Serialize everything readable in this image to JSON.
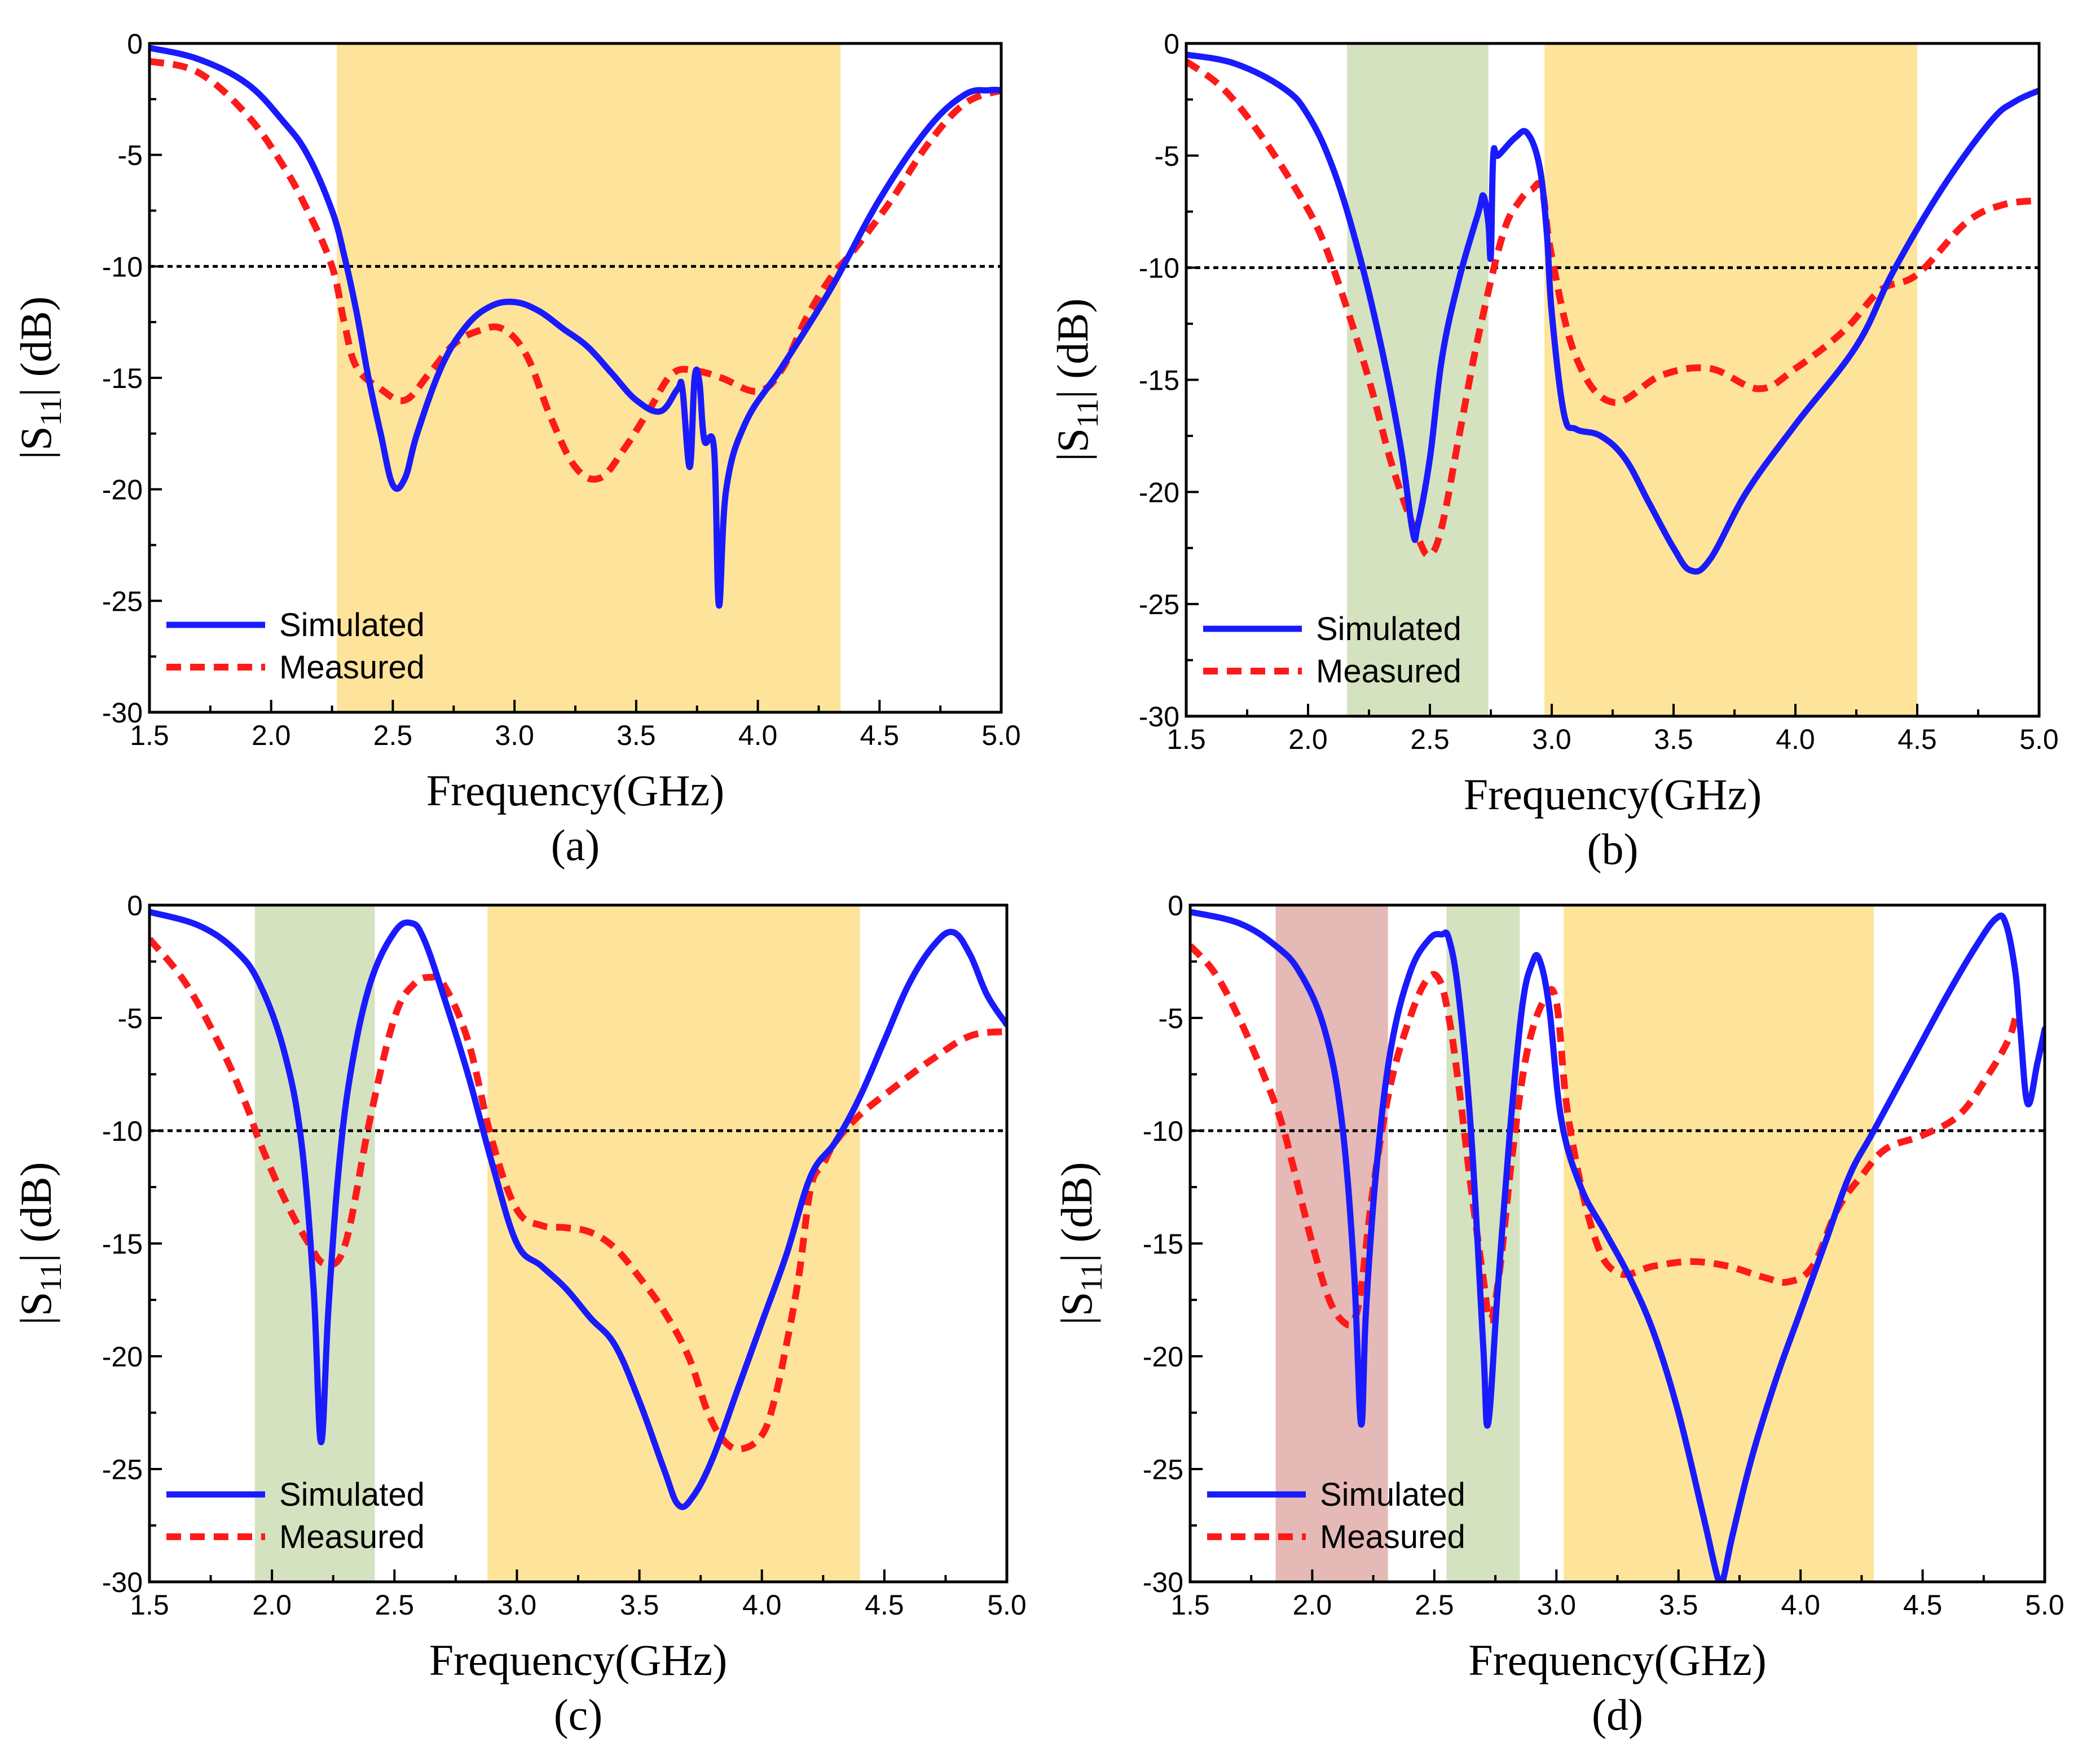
{
  "figure": {
    "x_axis_label": "Frequency(GHz)",
    "y_axis_label_prefix": "|S",
    "y_axis_label_sub": "11",
    "y_axis_label_suffix": "| (dB)",
    "colors": {
      "simulated": "#1a1aff",
      "measured": "#ff1a1a",
      "threshold": "#000000",
      "band_yellow": "#fde49a",
      "band_green": "#d5e2c0",
      "band_red": "#e4b9b6"
    }
  },
  "chart_data": [
    {
      "type": "line",
      "panel_label": "(a)",
      "xlabel": "Frequency(GHz)",
      "ylabel": "|S11| (dB)",
      "xlim": [
        1.5,
        5.0
      ],
      "ylim": [
        -30,
        0
      ],
      "xticks": [
        "1.5",
        "2.0",
        "2.5",
        "3.0",
        "3.5",
        "4.0",
        "4.5",
        "5.0"
      ],
      "yticks": [
        "0",
        "-5",
        "-10",
        "-15",
        "-20",
        "-25",
        "-30"
      ],
      "threshold": -10,
      "legend": [
        "Simulated",
        "Measured"
      ],
      "bands": [
        {
          "start": 2.27,
          "end": 4.34,
          "color": "yellow"
        }
      ],
      "series": [
        {
          "name": "Simulated",
          "x": [
            1.5,
            1.7,
            1.9,
            2.05,
            2.15,
            2.25,
            2.3,
            2.35,
            2.4,
            2.45,
            2.5,
            2.55,
            2.6,
            2.7,
            2.8,
            2.9,
            3.0,
            3.1,
            3.2,
            3.3,
            3.4,
            3.5,
            3.6,
            3.67,
            3.69,
            3.72,
            3.74,
            3.76,
            3.78,
            3.82,
            3.84,
            3.87,
            3.95,
            4.1,
            4.3,
            4.5,
            4.7,
            4.85,
            4.95,
            5.0
          ],
          "y": [
            -0.2,
            -0.7,
            -1.8,
            -3.5,
            -5.0,
            -7.5,
            -9.5,
            -12,
            -15,
            -17.5,
            -19.8,
            -19.5,
            -17.5,
            -14.5,
            -12.7,
            -11.8,
            -11.6,
            -12,
            -12.8,
            -13.6,
            -14.8,
            -16,
            -16.5,
            -15.5,
            -15.5,
            -19,
            -15,
            -15.2,
            -17.8,
            -18.2,
            -25.2,
            -20,
            -17,
            -14.5,
            -11,
            -7,
            -3.8,
            -2.3,
            -2.1,
            -2.1
          ]
        },
        {
          "name": "Measured",
          "x": [
            1.5,
            1.7,
            1.9,
            2.05,
            2.15,
            2.25,
            2.3,
            2.35,
            2.45,
            2.55,
            2.65,
            2.75,
            2.85,
            2.95,
            3.05,
            3.15,
            3.25,
            3.35,
            3.45,
            3.55,
            3.65,
            3.75,
            3.85,
            4.0,
            4.1,
            4.2,
            4.3,
            4.4,
            4.55,
            4.7,
            4.85,
            5.0
          ],
          "y": [
            -0.8,
            -1.3,
            -3.2,
            -5.5,
            -7.5,
            -10.0,
            -12.5,
            -14.5,
            -15.5,
            -16.0,
            -14.8,
            -13.5,
            -12.9,
            -12.8,
            -14.0,
            -16.8,
            -19.0,
            -19.5,
            -18.2,
            -16.5,
            -14.8,
            -14.7,
            -15.0,
            -15.6,
            -14.6,
            -12.3,
            -10.5,
            -9.2,
            -7.0,
            -4.5,
            -2.7,
            -2.1
          ]
        }
      ]
    },
    {
      "type": "line",
      "panel_label": "(b)",
      "xlabel": "Frequency(GHz)",
      "ylabel": "|S11| (dB)",
      "xlim": [
        1.5,
        5.0
      ],
      "ylim": [
        -30,
        0
      ],
      "xticks": [
        "1.5",
        "2.0",
        "2.5",
        "3.0",
        "3.5",
        "4.0",
        "4.5",
        "5.0"
      ],
      "yticks": [
        "0",
        "-5",
        "-10",
        "-15",
        "-20",
        "-25",
        "-30"
      ],
      "threshold": -10,
      "legend": [
        "Simulated",
        "Measured"
      ],
      "bands": [
        {
          "start": 2.16,
          "end": 2.74,
          "color": "green"
        },
        {
          "start": 2.97,
          "end": 4.5,
          "color": "yellow"
        }
      ],
      "series": [
        {
          "name": "Simulated",
          "x": [
            1.5,
            1.7,
            1.9,
            2.0,
            2.1,
            2.2,
            2.3,
            2.38,
            2.43,
            2.45,
            2.5,
            2.55,
            2.62,
            2.7,
            2.72,
            2.74,
            2.75,
            2.76,
            2.78,
            2.85,
            2.9,
            2.95,
            2.98,
            3.0,
            3.05,
            3.1,
            3.2,
            3.3,
            3.4,
            3.5,
            3.57,
            3.65,
            3.8,
            4.0,
            4.25,
            4.4,
            4.6,
            4.8,
            4.9,
            5.0
          ],
          "y": [
            -0.5,
            -0.9,
            -2.0,
            -3.2,
            -5.5,
            -9.0,
            -13.5,
            -18,
            -21.8,
            -21.5,
            -18.5,
            -14.0,
            -10.5,
            -7.5,
            -6.8,
            -8.0,
            -9.5,
            -5.0,
            -5.0,
            -4.2,
            -4.0,
            -5.5,
            -8.5,
            -12.0,
            -16.5,
            -17.2,
            -17.5,
            -18.5,
            -20.5,
            -22.5,
            -23.5,
            -23.0,
            -20.0,
            -17.0,
            -13.5,
            -10.2,
            -6.5,
            -3.5,
            -2.6,
            -2.1
          ]
        },
        {
          "name": "Measured",
          "x": [
            1.5,
            1.65,
            1.8,
            1.95,
            2.05,
            2.15,
            2.25,
            2.35,
            2.45,
            2.5,
            2.55,
            2.62,
            2.7,
            2.8,
            2.87,
            2.92,
            2.96,
            3.0,
            3.1,
            3.25,
            3.45,
            3.65,
            3.85,
            4.0,
            4.2,
            4.35,
            4.5,
            4.7,
            4.85,
            5.0
          ],
          "y": [
            -0.8,
            -2.0,
            -4.0,
            -6.5,
            -8.5,
            -11.5,
            -15.0,
            -19.0,
            -22.0,
            -22.8,
            -21.5,
            -17.5,
            -13.0,
            -8.5,
            -7.0,
            -6.5,
            -6.5,
            -9.5,
            -14.0,
            -16.0,
            -14.8,
            -14.5,
            -15.4,
            -14.5,
            -12.8,
            -11.0,
            -10.3,
            -8.0,
            -7.2,
            -7.0
          ]
        }
      ]
    },
    {
      "type": "line",
      "panel_label": "(c)",
      "xlabel": "Frequency(GHz)",
      "ylabel": "|S11| (dB)",
      "xlim": [
        1.5,
        5.0
      ],
      "ylim": [
        -30,
        0
      ],
      "xticks": [
        "1.5",
        "2.0",
        "2.5",
        "3.0",
        "3.5",
        "4.0",
        "4.5",
        "5.0"
      ],
      "yticks": [
        "0",
        "-5",
        "-10",
        "-15",
        "-20",
        "-25",
        "-30"
      ],
      "threshold": -10,
      "legend": [
        "Simulated",
        "Measured"
      ],
      "bands": [
        {
          "start": 1.93,
          "end": 2.42,
          "color": "green"
        },
        {
          "start": 2.88,
          "end": 4.4,
          "color": "yellow"
        }
      ],
      "series": [
        {
          "name": "Simulated",
          "x": [
            1.5,
            1.7,
            1.85,
            1.95,
            2.05,
            2.12,
            2.17,
            2.2,
            2.23,
            2.27,
            2.32,
            2.4,
            2.5,
            2.57,
            2.62,
            2.7,
            2.8,
            2.9,
            3.0,
            3.1,
            3.2,
            3.3,
            3.4,
            3.5,
            3.6,
            3.66,
            3.72,
            3.8,
            3.9,
            4.0,
            4.1,
            4.2,
            4.3,
            4.4,
            4.5,
            4.6,
            4.7,
            4.78,
            4.85,
            4.92,
            5.0
          ],
          "y": [
            -0.3,
            -0.9,
            -2.0,
            -3.5,
            -6.5,
            -10.5,
            -17.0,
            -23.8,
            -18.0,
            -12.0,
            -7.5,
            -3.5,
            -1.2,
            -0.8,
            -1.5,
            -4.0,
            -7.5,
            -11.5,
            -15.0,
            -16.0,
            -17.0,
            -18.3,
            -19.5,
            -22.0,
            -25.0,
            -26.6,
            -26.2,
            -24.5,
            -21.5,
            -18.5,
            -15.5,
            -12.0,
            -10.5,
            -8.5,
            -6.0,
            -3.5,
            -1.8,
            -1.2,
            -2.2,
            -4.0,
            -5.3
          ]
        },
        {
          "name": "Measured",
          "x": [
            1.5,
            1.65,
            1.8,
            1.9,
            1.95,
            2.05,
            2.15,
            2.22,
            2.3,
            2.4,
            2.5,
            2.58,
            2.65,
            2.7,
            2.8,
            2.9,
            3.0,
            3.1,
            3.2,
            3.3,
            3.4,
            3.5,
            3.6,
            3.7,
            3.78,
            3.85,
            3.92,
            4.0,
            4.05,
            4.1,
            4.15,
            4.2,
            4.25,
            4.3,
            4.4,
            4.55,
            4.7,
            4.85,
            5.0
          ],
          "y": [
            -1.5,
            -3.5,
            -6.5,
            -9.0,
            -10.5,
            -13.0,
            -15.0,
            -15.9,
            -15.0,
            -9.5,
            -5.0,
            -3.5,
            -3.2,
            -3.5,
            -6.0,
            -10.5,
            -13.5,
            -14.2,
            -14.3,
            -14.5,
            -15.2,
            -16.5,
            -18.0,
            -20.0,
            -22.5,
            -23.8,
            -24.1,
            -23.5,
            -22.0,
            -19.5,
            -16.5,
            -12.5,
            -11.5,
            -10.5,
            -9.3,
            -8.0,
            -6.8,
            -5.8,
            -5.6
          ]
        }
      ]
    },
    {
      "type": "line",
      "panel_label": "(d)",
      "xlabel": "Frequency(GHz)",
      "ylabel": "|S11| (dB)",
      "xlim": [
        1.5,
        5.0
      ],
      "ylim": [
        -30,
        0
      ],
      "xticks": [
        "1.5",
        "2.0",
        "2.5",
        "3.0",
        "3.5",
        "4.0",
        "4.5",
        "5.0"
      ],
      "yticks": [
        "0",
        "-5",
        "-10",
        "-15",
        "-20",
        "-25",
        "-30"
      ],
      "threshold": -10,
      "legend": [
        "Simulated",
        "Measured"
      ],
      "bands": [
        {
          "start": 1.85,
          "end": 2.31,
          "color": "red"
        },
        {
          "start": 2.55,
          "end": 2.85,
          "color": "green"
        },
        {
          "start": 3.03,
          "end": 4.3,
          "color": "yellow"
        }
      ],
      "series": [
        {
          "name": "Simulated",
          "x": [
            1.5,
            1.7,
            1.85,
            1.95,
            2.05,
            2.12,
            2.17,
            2.2,
            2.22,
            2.26,
            2.32,
            2.4,
            2.48,
            2.53,
            2.56,
            2.6,
            2.65,
            2.7,
            2.72,
            2.76,
            2.81,
            2.86,
            2.9,
            2.93,
            2.97,
            3.02,
            3.1,
            3.2,
            3.3,
            3.4,
            3.5,
            3.6,
            3.66,
            3.68,
            3.72,
            3.8,
            3.9,
            4.0,
            4.1,
            4.2,
            4.3,
            4.45,
            4.6,
            4.72,
            4.8,
            4.84,
            4.88,
            4.9,
            4.93,
            4.97,
            5.0
          ],
          "y": [
            -0.3,
            -0.8,
            -1.8,
            -3.0,
            -5.5,
            -9.5,
            -16.0,
            -23.0,
            -18.0,
            -12.0,
            -6.5,
            -3.0,
            -1.5,
            -1.3,
            -1.5,
            -4.0,
            -10.0,
            -19.5,
            -23.0,
            -17.0,
            -10.0,
            -4.5,
            -2.6,
            -2.4,
            -4.5,
            -9.5,
            -12.5,
            -14.5,
            -16.5,
            -19.0,
            -22.5,
            -27.0,
            -29.8,
            -30.0,
            -28.0,
            -24.5,
            -21.0,
            -18.0,
            -15.0,
            -12.0,
            -10.0,
            -7.0,
            -4.0,
            -1.8,
            -0.6,
            -0.8,
            -3.0,
            -5.5,
            -8.8,
            -7.0,
            -5.5
          ]
        },
        {
          "name": "Measured",
          "x": [
            1.5,
            1.6,
            1.7,
            1.8,
            1.87,
            1.92,
            2.0,
            2.07,
            2.13,
            2.17,
            2.2,
            2.25,
            2.32,
            2.4,
            2.47,
            2.52,
            2.56,
            2.6,
            2.65,
            2.7,
            2.73,
            2.77,
            2.82,
            2.88,
            2.95,
            3.0,
            3.05,
            3.15,
            3.25,
            3.4,
            3.55,
            3.7,
            3.85,
            3.95,
            4.05,
            4.15,
            4.25,
            4.35,
            4.5,
            4.65,
            4.77,
            4.85,
            4.88
          ],
          "y": [
            -1.8,
            -3.0,
            -5.0,
            -7.5,
            -9.5,
            -11.5,
            -15.0,
            -17.5,
            -18.5,
            -18.4,
            -17.0,
            -12.5,
            -8.0,
            -5.0,
            -3.3,
            -3.3,
            -5.0,
            -8.0,
            -12.5,
            -16.5,
            -18.4,
            -16.0,
            -11.0,
            -6.5,
            -4.2,
            -4.3,
            -9.5,
            -14.5,
            -16.3,
            -16.0,
            -15.8,
            -16.0,
            -16.5,
            -16.7,
            -16.0,
            -13.5,
            -12.0,
            -10.8,
            -10.2,
            -9.3,
            -7.5,
            -6.0,
            -5.0
          ]
        }
      ]
    }
  ]
}
